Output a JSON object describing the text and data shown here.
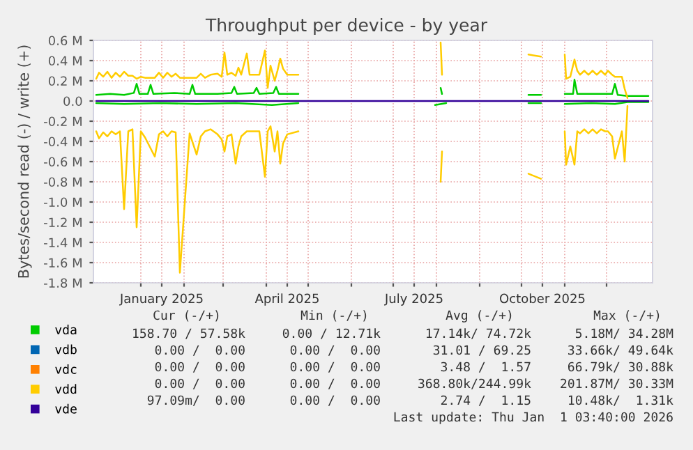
{
  "chart_data": {
    "type": "line",
    "title": "Throughput per device - by year",
    "ylabel": "Bytes/second read (-) / write (+)",
    "xlim": [
      "2024-11-28",
      "2026-01-03"
    ],
    "xticks": [
      {
        "value": "2025-01-16",
        "label": "January 2025"
      },
      {
        "value": "2025-04-16",
        "label": "April 2025"
      },
      {
        "value": "2025-07-16",
        "label": "July 2025"
      },
      {
        "value": "2025-10-16",
        "label": "October 2025"
      },
      {
        "value": "2025-01-01",
        "label": null
      },
      {
        "value": "2025-02-01",
        "label": null
      },
      {
        "value": "2025-03-01",
        "label": null
      },
      {
        "value": "2025-04-01",
        "label": null
      },
      {
        "value": "2025-05-01",
        "label": null
      },
      {
        "value": "2025-06-01",
        "label": null
      },
      {
        "value": "2025-07-01",
        "label": null
      },
      {
        "value": "2025-08-01",
        "label": null
      },
      {
        "value": "2025-09-01",
        "label": null
      },
      {
        "value": "2025-10-01",
        "label": null
      },
      {
        "value": "2025-11-01",
        "label": null
      },
      {
        "value": "2025-12-01",
        "label": null
      }
    ],
    "ylim": [
      -1.8,
      0.6
    ],
    "yticks": [
      {
        "value": 0.6,
        "label": "0.6 M"
      },
      {
        "value": 0.4,
        "label": "0.4 M"
      },
      {
        "value": 0.2,
        "label": "0.2 M"
      },
      {
        "value": 0.0,
        "label": "0.0"
      },
      {
        "value": -0.2,
        "label": "-0.2 M"
      },
      {
        "value": -0.4,
        "label": "-0.4 M"
      },
      {
        "value": -0.6,
        "label": "-0.6 M"
      },
      {
        "value": -0.8,
        "label": "-0.8 M"
      },
      {
        "value": -1.0,
        "label": "-1.0 M"
      },
      {
        "value": -1.2,
        "label": "-1.2 M"
      },
      {
        "value": -1.4,
        "label": "-1.4 M"
      },
      {
        "value": -1.6,
        "label": "-1.6 M"
      },
      {
        "value": -1.8,
        "label": "-1.8 M"
      }
    ],
    "grid": true,
    "legend": "bottom",
    "series": [
      {
        "name": "vda",
        "color": "#00cc00",
        "x": [
          "2024-11-30",
          "2024-12-10",
          "2024-12-20",
          "2024-12-27",
          "2024-12-29",
          "2024-12-31",
          "2025-01-06",
          "2025-01-08",
          "2025-01-10",
          "2025-01-25",
          "2025-02-05",
          "2025-02-07",
          "2025-02-09",
          "2025-02-25",
          "2025-03-07",
          "2025-03-09",
          "2025-03-11",
          "2025-03-23",
          "2025-03-25",
          "2025-03-27",
          "2025-04-06",
          "2025-04-08",
          "2025-04-10",
          "2025-04-24",
          "2025-06-15",
          "2025-08-04",
          "2025-08-05",
          "2025-09-10",
          "2025-10-06",
          "2025-10-15",
          "2025-10-25",
          "2025-11-01",
          "2025-11-07",
          "2025-11-08",
          "2025-11-10",
          "2025-12-05",
          "2025-12-07",
          "2025-12-09",
          "2025-12-16",
          "2025-12-31"
        ],
        "values": [
          0.06,
          0.07,
          0.06,
          0.08,
          0.17,
          0.07,
          0.07,
          0.16,
          0.07,
          0.08,
          0.07,
          0.16,
          0.07,
          0.07,
          0.08,
          0.14,
          0.07,
          0.08,
          0.13,
          0.07,
          0.08,
          0.14,
          0.07,
          0.07,
          null,
          0.13,
          0.07,
          null,
          0.06,
          0.06,
          null,
          0.07,
          0.07,
          0.21,
          0.07,
          0.07,
          0.17,
          0.06,
          0.05,
          0.05
        ]
      },
      {
        "color": "#00cc00",
        "x": [
          "2024-11-30",
          "2024-12-20",
          "2025-01-15",
          "2025-02-10",
          "2025-03-10",
          "2025-04-05",
          "2025-04-24",
          "2025-06-15",
          "2025-07-31",
          "2025-08-08",
          "2025-09-10",
          "2025-10-06",
          "2025-10-15",
          "2025-10-25",
          "2025-11-01",
          "2025-11-20",
          "2025-12-07",
          "2025-12-16",
          "2025-12-31"
        ],
        "values": [
          -0.02,
          -0.03,
          -0.02,
          -0.03,
          -0.02,
          -0.04,
          -0.02,
          null,
          -0.04,
          -0.02,
          null,
          -0.02,
          -0.02,
          null,
          -0.03,
          -0.02,
          -0.03,
          -0.01,
          -0.01
        ]
      },
      {
        "name": "vdb",
        "color": "#0066b3"
      },
      {
        "name": "vdc",
        "color": "#ff8000"
      },
      {
        "name": "vdd",
        "color": "#ffcc00",
        "x": [
          "2024-11-30",
          "2024-12-02",
          "2024-12-05",
          "2024-12-08",
          "2024-12-11",
          "2024-12-14",
          "2024-12-17",
          "2024-12-20",
          "2024-12-23",
          "2024-12-26",
          "2024-12-29",
          "2025-01-01",
          "2025-01-04",
          "2025-01-11",
          "2025-01-14",
          "2025-01-17",
          "2025-01-20",
          "2025-01-23",
          "2025-01-26",
          "2025-01-29",
          "2025-02-05",
          "2025-02-10",
          "2025-02-13",
          "2025-02-16",
          "2025-02-20",
          "2025-02-25",
          "2025-02-28",
          "2025-03-02",
          "2025-03-04",
          "2025-03-07",
          "2025-03-10",
          "2025-03-12",
          "2025-03-14",
          "2025-03-18",
          "2025-03-20",
          "2025-03-27",
          "2025-03-31",
          "2025-04-02",
          "2025-04-04",
          "2025-04-07",
          "2025-04-09",
          "2025-04-11",
          "2025-04-13",
          "2025-04-16",
          "2025-04-24",
          "2025-06-15",
          "2025-08-04",
          "2025-08-05",
          "2025-09-10",
          "2025-10-06",
          "2025-10-15",
          "2025-10-25",
          "2025-11-01",
          "2025-11-02",
          "2025-11-05",
          "2025-11-08",
          "2025-11-10",
          "2025-11-12",
          "2025-11-15",
          "2025-11-18",
          "2025-11-21",
          "2025-11-24",
          "2025-11-27",
          "2025-11-30",
          "2025-12-02",
          "2025-12-05",
          "2025-12-07",
          "2025-12-12",
          "2025-12-14",
          "2025-12-16"
        ],
        "values": [
          0.22,
          0.28,
          0.24,
          0.29,
          0.23,
          0.28,
          0.24,
          0.29,
          0.25,
          0.25,
          0.22,
          0.24,
          0.23,
          0.23,
          0.28,
          0.23,
          0.28,
          0.24,
          0.27,
          0.23,
          0.23,
          0.23,
          0.27,
          0.23,
          0.26,
          0.27,
          0.24,
          0.48,
          0.26,
          0.28,
          0.25,
          0.33,
          0.26,
          0.47,
          0.26,
          0.26,
          0.5,
          0.13,
          0.35,
          0.2,
          0.3,
          0.42,
          0.32,
          0.26,
          0.26,
          null,
          0.58,
          0.26,
          null,
          0.46,
          0.44,
          null,
          0.46,
          0.22,
          0.24,
          0.41,
          0.3,
          0.26,
          0.3,
          0.26,
          0.3,
          0.26,
          0.3,
          0.26,
          0.3,
          0.26,
          0.24,
          0.24,
          0.12,
          0.03
        ]
      },
      {
        "color": "#ffcc00",
        "x": [
          "2024-11-30",
          "2024-12-02",
          "2024-12-05",
          "2024-12-08",
          "2024-12-11",
          "2024-12-14",
          "2024-12-17",
          "2024-12-20",
          "2024-12-23",
          "2024-12-26",
          "2024-12-29",
          "2025-01-01",
          "2025-01-04",
          "2025-01-11",
          "2025-01-14",
          "2025-01-17",
          "2025-01-20",
          "2025-01-23",
          "2025-01-26",
          "2025-01-29",
          "2025-02-05",
          "2025-02-10",
          "2025-02-13",
          "2025-02-16",
          "2025-02-20",
          "2025-02-25",
          "2025-02-28",
          "2025-03-02",
          "2025-03-04",
          "2025-03-07",
          "2025-03-10",
          "2025-03-12",
          "2025-03-14",
          "2025-03-18",
          "2025-03-20",
          "2025-03-27",
          "2025-03-31",
          "2025-04-02",
          "2025-04-04",
          "2025-04-07",
          "2025-04-09",
          "2025-04-11",
          "2025-04-13",
          "2025-04-16",
          "2025-04-24",
          "2025-06-15",
          "2025-08-04",
          "2025-08-05",
          "2025-09-10",
          "2025-10-06",
          "2025-10-15",
          "2025-10-25",
          "2025-11-01",
          "2025-11-02",
          "2025-11-05",
          "2025-11-08",
          "2025-11-10",
          "2025-11-12",
          "2025-11-15",
          "2025-11-18",
          "2025-11-21",
          "2025-11-24",
          "2025-11-27",
          "2025-11-30",
          "2025-12-02",
          "2025-12-05",
          "2025-12-07",
          "2025-12-12",
          "2025-12-14",
          "2025-12-16"
        ],
        "values": [
          -0.3,
          -0.37,
          -0.31,
          -0.35,
          -0.3,
          -0.33,
          -0.3,
          -1.07,
          -0.3,
          -0.28,
          -1.25,
          -0.3,
          -0.36,
          -0.55,
          -0.33,
          -0.3,
          -0.35,
          -0.3,
          -0.31,
          -1.7,
          -0.32,
          -0.53,
          -0.35,
          -0.3,
          -0.28,
          -0.33,
          -0.38,
          -0.5,
          -0.35,
          -0.33,
          -0.62,
          -0.45,
          -0.35,
          -0.3,
          -0.3,
          -0.3,
          -0.75,
          -0.3,
          -0.25,
          -0.5,
          -0.3,
          -0.62,
          -0.42,
          -0.33,
          -0.3,
          null,
          -0.8,
          -0.5,
          null,
          -0.72,
          -0.77,
          null,
          -0.3,
          -0.63,
          -0.45,
          -0.63,
          -0.3,
          -0.32,
          -0.28,
          -0.32,
          -0.28,
          -0.32,
          -0.28,
          -0.3,
          -0.3,
          -0.35,
          -0.57,
          -0.3,
          -0.6,
          -0.05
        ]
      },
      {
        "name": "vde",
        "color": "#330099",
        "x": [
          "2024-11-30",
          "2025-12-31"
        ],
        "values": [
          0,
          0
        ]
      }
    ],
    "annotations": [
      "Cur (-/+)",
      "Min (-/+)",
      "Avg (-/+)",
      "Max (-/+)",
      "158.70 / 57.58k",
      "0.00 / 12.71k",
      "17.14k/ 74.72k",
      "5.18M/ 34.28M",
      "0.00 /  0.00",
      "0.00 /  0.00",
      "31.01 / 69.25",
      "33.66k/ 49.64k",
      "0.00 /  0.00",
      "0.00 /  0.00",
      "3.48 /  1.57",
      "66.79k/ 30.88k",
      "0.00 /  0.00",
      "0.00 /  0.00",
      "368.80k/244.99k",
      "201.87M/ 30.33M",
      "97.09m/  0.00",
      "0.00 /  0.00",
      "2.74 /  1.15",
      "10.48k/  1.31k",
      "Last update: Thu Jan  1 03:40:00 2026"
    ]
  }
}
